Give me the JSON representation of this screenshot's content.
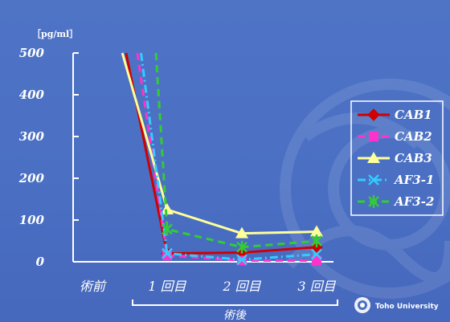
{
  "chart_data": {
    "type": "line",
    "unit_label": "［pg/ml］",
    "categories": [
      "術前",
      "1 回目",
      "2 回目",
      "3 回目"
    ],
    "group_label": "術後",
    "ylim": [
      0,
      500
    ],
    "yticks": [
      "0",
      "100",
      "200",
      "300",
      "400",
      "500"
    ],
    "legend_position": "right",
    "series": [
      {
        "name": "CAB1",
        "color": "#d00000",
        "marker": "diamond",
        "dash": "solid",
        "x": [
          0.45,
          1,
          2,
          3
        ],
        "values": [
          500,
          20,
          22,
          35
        ]
      },
      {
        "name": "CAB2",
        "color": "#ff33cc",
        "marker": "square",
        "dash": "dashed",
        "x": [
          0.6,
          1,
          2,
          3
        ],
        "values": [
          500,
          15,
          3,
          3
        ]
      },
      {
        "name": "CAB3",
        "color": "#ffff99",
        "marker": "triangle",
        "dash": "solid",
        "x": [
          0.4,
          1,
          2,
          3
        ],
        "values": [
          500,
          125,
          68,
          72
        ]
      },
      {
        "name": "AF3-1",
        "color": "#33ccff",
        "marker": "x",
        "dash": "dashdot",
        "x": [
          0.65,
          1,
          2,
          3
        ],
        "values": [
          500,
          20,
          5,
          18
        ]
      },
      {
        "name": "AF3-2",
        "color": "#33cc33",
        "marker": "star",
        "dash": "dashed",
        "x": [
          0.85,
          1,
          2,
          3
        ],
        "values": [
          500,
          78,
          35,
          50
        ]
      }
    ]
  },
  "watermark_logo": {
    "text": "Toho University",
    "icon": "toho-university-emblem-icon"
  }
}
